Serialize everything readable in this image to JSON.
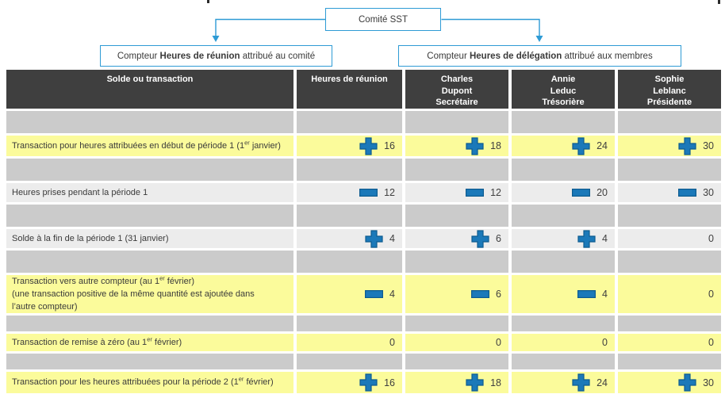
{
  "diagram": {
    "root_box": {
      "label": "Comité SST"
    },
    "left_box": {
      "prefix": "Compteur ",
      "bold": "Heures de réunion",
      "suffix": " attribué au comité"
    },
    "right_box": {
      "prefix": "Compteur ",
      "bold": "Heures de délégation",
      "suffix": " attribué aux membres"
    }
  },
  "table": {
    "header": [
      "Solde ou transaction",
      "Heures de réunion",
      "Charles\nDupont\nSecrétaire",
      "Annie\nLeduc\nTrésorière",
      "Sophie\nLeblanc\nPrésidente"
    ],
    "rows": [
      {
        "type": "spacer"
      },
      {
        "type": "data",
        "highlight": "yellow",
        "label": [
          "Transaction pour heures attribuées en début de période 1 (1",
          "er",
          " janvier)"
        ],
        "cells": [
          {
            "icon": "plus-icon",
            "value": "16"
          },
          {
            "icon": "plus-icon",
            "value": "18"
          },
          {
            "icon": "plus-icon",
            "value": "24"
          },
          {
            "icon": "plus-icon",
            "value": "30"
          }
        ]
      },
      {
        "type": "spacer"
      },
      {
        "type": "data",
        "highlight": "light",
        "label": [
          "Heures prises pendant la période 1",
          "",
          ""
        ],
        "cells": [
          {
            "icon": "minus-icon",
            "value": "12"
          },
          {
            "icon": "minus-icon",
            "value": "12"
          },
          {
            "icon": "minus-icon",
            "value": "20"
          },
          {
            "icon": "minus-icon",
            "value": "30"
          }
        ]
      },
      {
        "type": "spacer"
      },
      {
        "type": "data",
        "highlight": "light",
        "label": [
          "Solde à la fin de la période 1 (31 janvier)",
          "",
          ""
        ],
        "cells": [
          {
            "icon": "plus-icon",
            "value": "4"
          },
          {
            "icon": "plus-icon",
            "value": "6"
          },
          {
            "icon": "plus-icon",
            "value": "4"
          },
          {
            "icon": null,
            "value": "0"
          }
        ]
      },
      {
        "type": "spacer"
      },
      {
        "type": "data",
        "highlight": "yellow",
        "label": [
          "Transaction vers autre compteur (au 1",
          "er",
          " février)"
        ],
        "label2": "(une transaction positive de la même quantité est ajoutée dans",
        "label3": "l’autre compteur)",
        "cells": [
          {
            "icon": "minus-icon",
            "value": "4"
          },
          {
            "icon": "minus-icon",
            "value": "6"
          },
          {
            "icon": "minus-icon",
            "value": "4"
          },
          {
            "icon": null,
            "value": "0"
          }
        ]
      },
      {
        "type": "spacer"
      },
      {
        "type": "data",
        "highlight": "yellow",
        "label": [
          "Transaction de remise à zéro (au 1",
          "er",
          " février)"
        ],
        "cells": [
          {
            "icon": null,
            "value": "0"
          },
          {
            "icon": null,
            "value": "0"
          },
          {
            "icon": null,
            "value": "0"
          },
          {
            "icon": null,
            "value": "0"
          }
        ]
      },
      {
        "type": "spacer"
      },
      {
        "type": "data",
        "highlight": "yellow",
        "label": [
          "Transaction pour les heures attribuées pour la période 2 (1",
          "er",
          " février)"
        ],
        "cells": [
          {
            "icon": "plus-icon",
            "value": "16"
          },
          {
            "icon": "plus-icon",
            "value": "18"
          },
          {
            "icon": "plus-icon",
            "value": "24"
          },
          {
            "icon": "plus-icon",
            "value": "30"
          }
        ]
      }
    ]
  },
  "colors": {
    "accent_blue": "#2E9BD5",
    "icon_blue": "#1B79B9",
    "header_bg": "#3F3F3F",
    "spacer_gray": "#CBCBCB",
    "light_row": "#ECECEC",
    "highlight_yellow": "#FBFB9B"
  }
}
